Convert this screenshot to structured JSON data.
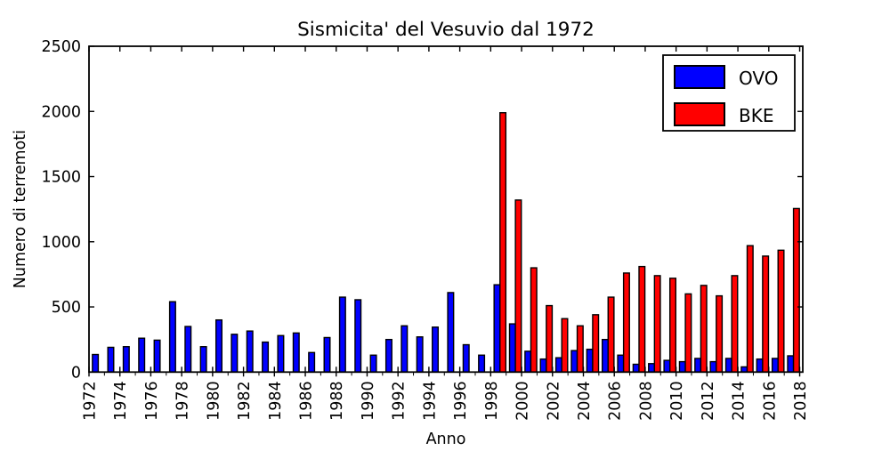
{
  "chart_data": {
    "type": "bar",
    "title": "Sismicita' del Vesuvio dal 1972",
    "xlabel": "Anno",
    "ylabel": "Numero di terremoti",
    "ylim": [
      0,
      2500
    ],
    "yticks": [
      0,
      500,
      1000,
      1500,
      2000,
      2500
    ],
    "xtick_label_step": 2,
    "xtick_rotation": 90,
    "grid": "off",
    "legend_position": "upper right",
    "categories": [
      1972,
      1973,
      1974,
      1975,
      1976,
      1977,
      1978,
      1979,
      1980,
      1981,
      1982,
      1983,
      1984,
      1985,
      1986,
      1987,
      1988,
      1989,
      1990,
      1991,
      1992,
      1993,
      1994,
      1995,
      1996,
      1997,
      1998,
      1999,
      2000,
      2001,
      2002,
      2003,
      2004,
      2005,
      2006,
      2007,
      2008,
      2009,
      2010,
      2011,
      2012,
      2013,
      2014,
      2015,
      2016,
      2017,
      2018
    ],
    "series": [
      {
        "name": "OVO",
        "color": "#0000ff",
        "edge_color": "#000000",
        "values": [
          0,
          135,
          190,
          195,
          260,
          245,
          540,
          350,
          195,
          400,
          290,
          315,
          230,
          280,
          300,
          150,
          265,
          575,
          555,
          130,
          250,
          355,
          270,
          345,
          610,
          210,
          130,
          670,
          370,
          160,
          100,
          110,
          165,
          175,
          250,
          130,
          60,
          65,
          90,
          80,
          105,
          80,
          105,
          40,
          100,
          105,
          125
        ]
      },
      {
        "name": "BKE",
        "color": "#ff0000",
        "edge_color": "#000000",
        "values": [
          0,
          0,
          0,
          0,
          0,
          0,
          0,
          0,
          0,
          0,
          0,
          0,
          0,
          0,
          0,
          0,
          0,
          0,
          0,
          0,
          0,
          0,
          0,
          0,
          0,
          0,
          0,
          1990,
          1320,
          800,
          510,
          410,
          355,
          440,
          575,
          760,
          810,
          740,
          720,
          600,
          665,
          585,
          740,
          970,
          890,
          935,
          1255
        ]
      }
    ],
    "axis_color": "#000000",
    "background_color": "#ffffff"
  }
}
